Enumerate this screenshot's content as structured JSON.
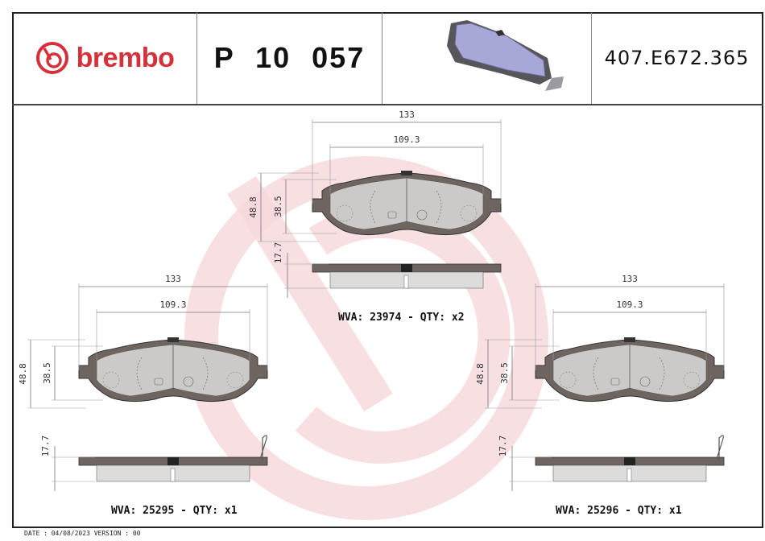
{
  "header": {
    "brand": "brembo",
    "part_number": "P 10 057",
    "reference": "407.E672.365"
  },
  "colors": {
    "brand_red": "#d6303a",
    "pad_fill": "#dcdcdc",
    "backing_plate": "#6f6560",
    "watermark": "#f7d9dc"
  },
  "views": [
    {
      "width_total": "133",
      "width_inner": "109.3",
      "height_total": "48.8",
      "height_inner": "38.5",
      "thickness": "17.7",
      "caption": "WVA: 23974 - QTY: x2"
    },
    {
      "width_total": "133",
      "width_inner": "109.3",
      "height_total": "48.8",
      "height_inner": "38.5",
      "thickness": "17.7",
      "caption": "WVA: 25295 - QTY: x1"
    },
    {
      "width_total": "133",
      "width_inner": "109.3",
      "height_total": "48.8",
      "height_inner": "38.5",
      "thickness": "17.7",
      "caption": "WVA: 25296 - QTY: x1"
    }
  ],
  "footer": {
    "text": "DATE : 04/08/2023 VERSION : 00"
  }
}
